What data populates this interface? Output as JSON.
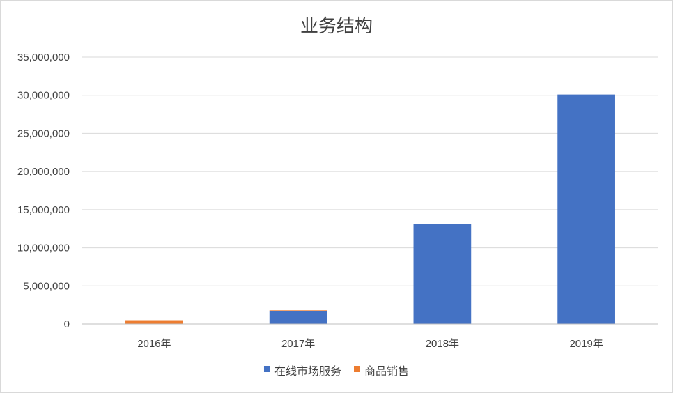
{
  "chart_data": {
    "type": "bar",
    "stacked": true,
    "title": "业务结构",
    "xlabel": "",
    "ylabel": "",
    "categories": [
      "2016年",
      "2017年",
      "2018年",
      "2019年"
    ],
    "series": [
      {
        "name": "在线市场服务",
        "color": "#4472C4",
        "values": [
          0,
          1700000,
          13100000,
          30100000
        ]
      },
      {
        "name": "商品销售",
        "color": "#ED7D31",
        "values": [
          500000,
          100000,
          0,
          0
        ]
      }
    ],
    "ylim": [
      0,
      35000000
    ],
    "yticks": [
      0,
      5000000,
      10000000,
      15000000,
      20000000,
      25000000,
      30000000,
      35000000
    ],
    "ytick_labels": [
      "0",
      "5,000,000",
      "10,000,000",
      "15,000,000",
      "20,000,000",
      "25,000,000",
      "30,000,000",
      "35,000,000"
    ],
    "grid": true,
    "legend_position": "bottom"
  }
}
